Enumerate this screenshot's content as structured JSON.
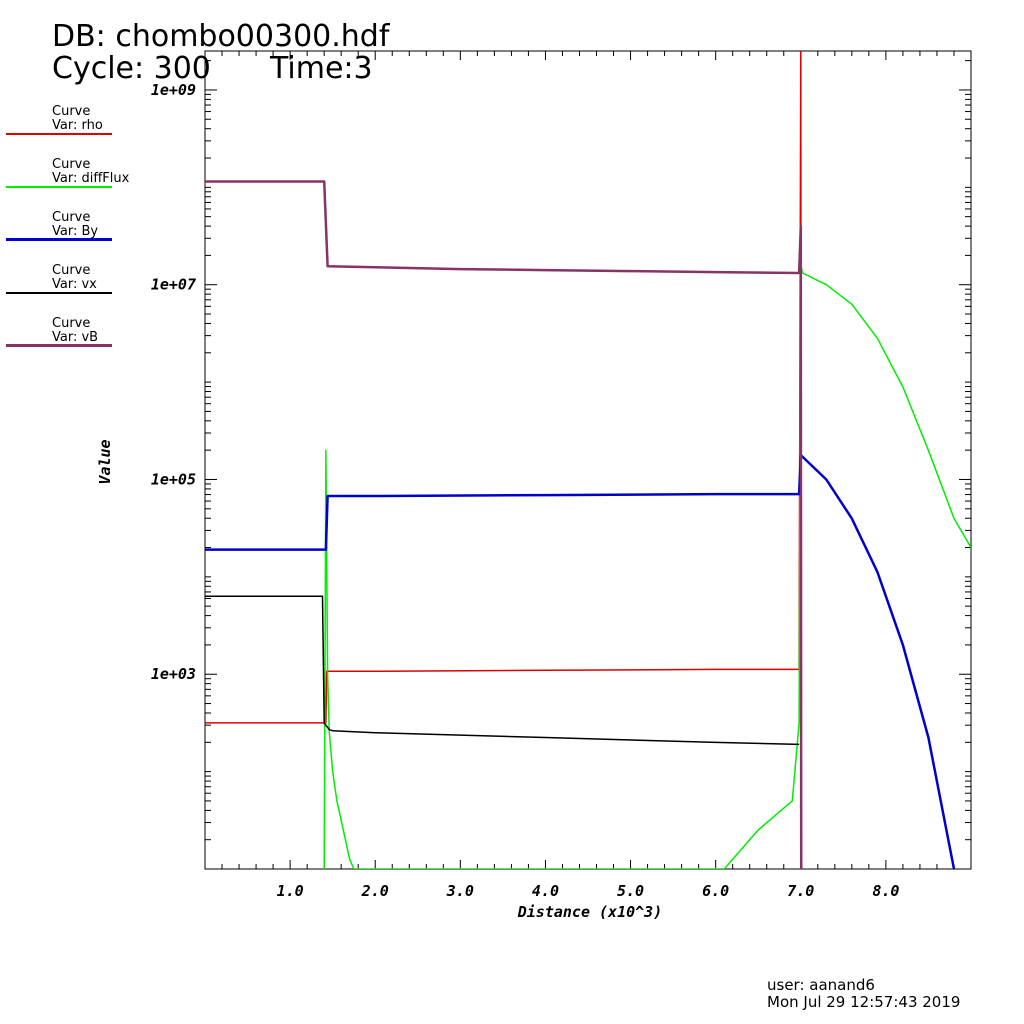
{
  "header": {
    "db": "DB: chombo00300.hdf",
    "cycle": "Cycle: 300",
    "time": "Time:3"
  },
  "legend": [
    {
      "title": "Curve",
      "var": "Var: rho",
      "color": "#e00000"
    },
    {
      "title": "Curve",
      "var": "Var: diffFlux",
      "color": "#00ee00"
    },
    {
      "title": "Curve",
      "var": "Var: By",
      "color": "#0000cc"
    },
    {
      "title": "Curve",
      "var": "Var: vx",
      "color": "#000000"
    },
    {
      "title": "Curve",
      "var": "Var: vB",
      "color": "#883366"
    }
  ],
  "footer": {
    "user": "user: aanand6",
    "date": "Mon Jul 29 12:57:43 2019"
  },
  "chart_data": {
    "type": "line",
    "xlabel": "Distance (x10^3)",
    "ylabel": "Value",
    "xlim": [
      0,
      9
    ],
    "ylim_log10": [
      1.0,
      9.4
    ],
    "yscale": "log",
    "x_ticks": [
      1.0,
      2.0,
      3.0,
      4.0,
      5.0,
      6.0,
      7.0,
      8.0
    ],
    "x_tick_labels": [
      "1.0",
      "2.0",
      "3.0",
      "4.0",
      "5.0",
      "6.0",
      "7.0",
      "8.0"
    ],
    "y_ticks_log10": [
      3,
      5,
      7,
      9
    ],
    "y_tick_labels": [
      "1e+03",
      "1e+05",
      "1e+07",
      "1e+09"
    ],
    "series": [
      {
        "name": "rho",
        "color": "#e00000",
        "x": [
          0.0,
          1.42,
          1.43,
          2.0,
          4.0,
          6.0,
          6.98,
          7.0,
          7.005,
          7.01
        ],
        "log10y": [
          2.5,
          2.5,
          3.03,
          3.03,
          3.04,
          3.05,
          3.05,
          9.5,
          2.0,
          1.0
        ]
      },
      {
        "name": "diffFlux",
        "color": "#00ee00",
        "x": [
          1.4,
          1.42,
          1.44,
          1.46,
          1.5,
          1.55,
          1.6,
          1.65,
          1.7,
          1.75,
          6.1,
          6.5,
          6.9,
          6.98,
          7.0,
          7.02,
          7.3,
          7.6,
          7.9,
          8.2,
          8.5,
          8.8,
          9.0
        ],
        "log10y": [
          1.0,
          5.3,
          3.0,
          2.4,
          2.0,
          1.7,
          1.5,
          1.3,
          1.1,
          1.0,
          1.0,
          1.4,
          1.7,
          2.5,
          7.2,
          7.12,
          7.0,
          6.8,
          6.45,
          5.95,
          5.3,
          4.6,
          4.3
        ]
      },
      {
        "name": "By",
        "color": "#0000cc",
        "x": [
          0.0,
          1.42,
          1.44,
          2.0,
          4.0,
          6.0,
          6.98,
          7.0,
          7.3,
          7.6,
          7.9,
          8.2,
          8.5,
          8.8
        ],
        "log10y": [
          4.28,
          4.28,
          4.83,
          4.83,
          4.84,
          4.85,
          4.85,
          5.25,
          5.0,
          4.6,
          4.05,
          3.3,
          2.35,
          1.0
        ]
      },
      {
        "name": "vx",
        "color": "#000000",
        "x": [
          0.0,
          1.38,
          1.4,
          1.46,
          1.5,
          2.0,
          4.0,
          6.0,
          6.98
        ],
        "log10y": [
          3.8,
          3.8,
          2.5,
          2.43,
          2.42,
          2.4,
          2.35,
          2.3,
          2.28
        ]
      },
      {
        "name": "vB",
        "color": "#883366",
        "x": [
          0.0,
          1.4,
          1.44,
          2.0,
          3.0,
          4.0,
          5.0,
          6.0,
          6.98,
          7.0,
          7.005
        ],
        "log10y": [
          8.06,
          8.06,
          7.19,
          7.18,
          7.16,
          7.15,
          7.14,
          7.13,
          7.12,
          7.6,
          1.0
        ]
      }
    ]
  }
}
